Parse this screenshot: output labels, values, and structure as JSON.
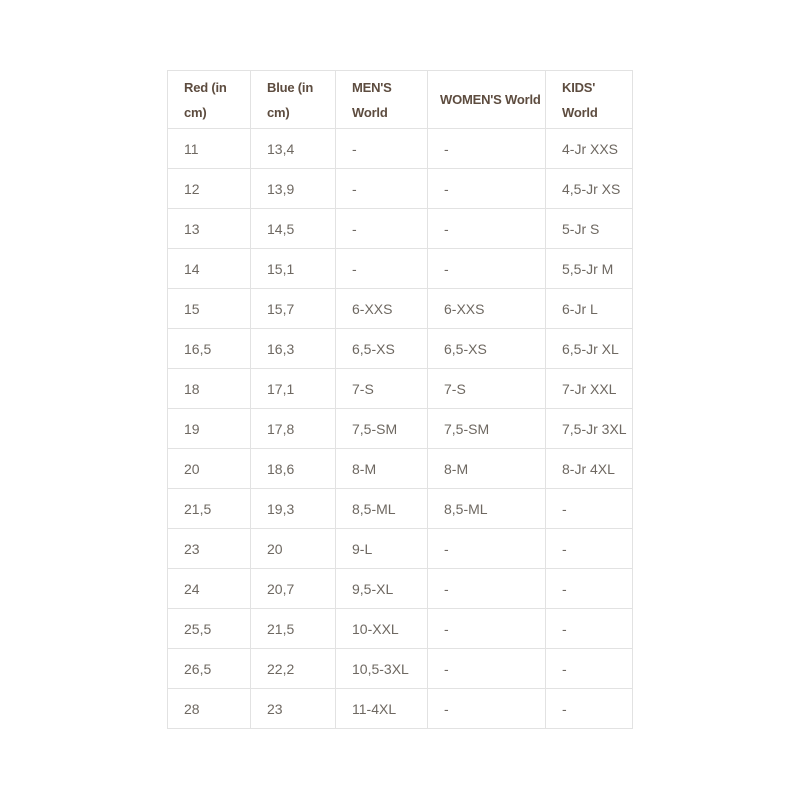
{
  "colors": {
    "header_text": "#5d4c3f",
    "body_text": "#6e6861",
    "border": "#e2e2e2",
    "background": "#ffffff"
  },
  "table": {
    "columns": [
      "Red (in cm)",
      "Blue (in cm)",
      "MEN'S World",
      "WOMEN'S World",
      "KIDS' World"
    ],
    "rows": [
      [
        "11",
        "13,4",
        "-",
        "-",
        "4-Jr XXS"
      ],
      [
        "12",
        "13,9",
        "-",
        "-",
        "4,5-Jr XS"
      ],
      [
        "13",
        "14,5",
        "-",
        "-",
        "5-Jr S"
      ],
      [
        "14",
        "15,1",
        "-",
        "-",
        "5,5-Jr M"
      ],
      [
        "15",
        "15,7",
        "6-XXS",
        "6-XXS",
        "6-Jr L"
      ],
      [
        "16,5",
        "16,3",
        "6,5-XS",
        "6,5-XS",
        "6,5-Jr XL"
      ],
      [
        "18",
        "17,1",
        "7-S",
        "7-S",
        "7-Jr XXL"
      ],
      [
        "19",
        "17,8",
        "7,5-SM",
        "7,5-SM",
        "7,5-Jr 3XL"
      ],
      [
        "20",
        "18,6",
        "8-M",
        "8-M",
        "8-Jr 4XL"
      ],
      [
        "21,5",
        "19,3",
        "8,5-ML",
        "8,5-ML",
        "-"
      ],
      [
        "23",
        "20",
        "9-L",
        "-",
        "-"
      ],
      [
        "24",
        "20,7",
        "9,5-XL",
        "-",
        "-"
      ],
      [
        "25,5",
        "21,5",
        "10-XXL",
        "-",
        "-"
      ],
      [
        "26,5",
        "22,2",
        "10,5-3XL",
        "-",
        "-"
      ],
      [
        "28",
        "23",
        "11-4XL",
        "-",
        "-"
      ]
    ]
  }
}
